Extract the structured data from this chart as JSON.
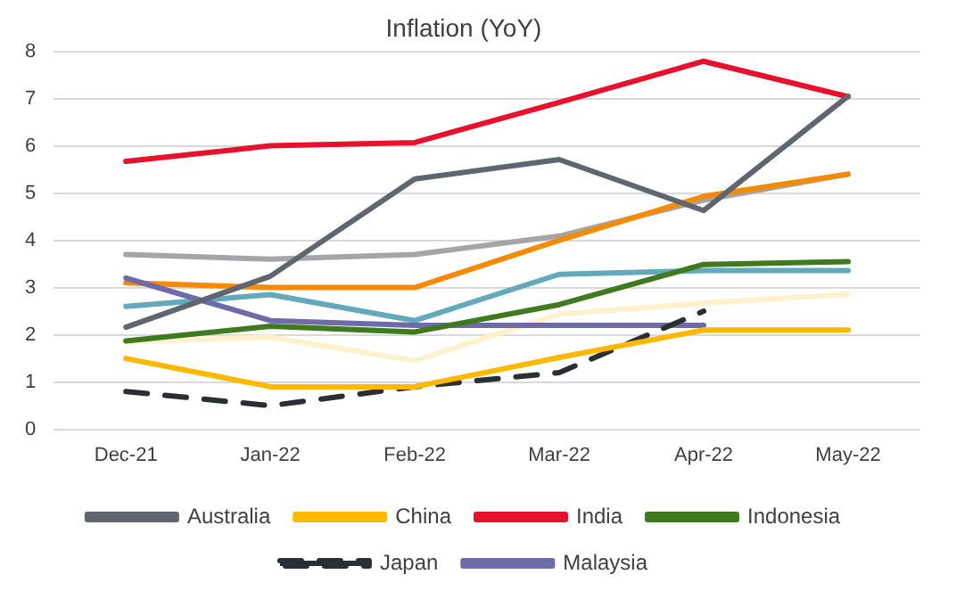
{
  "chart_data": {
    "type": "line",
    "title": "Inflation (YoY)",
    "categories": [
      "Dec-21",
      "Jan-22",
      "Feb-22",
      "Mar-22",
      "Apr-22",
      "May-22"
    ],
    "ylim": [
      0,
      8
    ],
    "yticks": [
      0,
      1,
      2,
      3,
      4,
      5,
      6,
      7,
      8
    ],
    "grid": "y",
    "legend": "bottom",
    "marker": "none",
    "series": [
      {
        "name": "Australia",
        "color": "#5f6670",
        "values": [
          2.16,
          3.24,
          5.3,
          5.71,
          4.63,
          7.05
        ]
      },
      {
        "name": "China",
        "color": "#ffb800",
        "values": [
          1.5,
          0.9,
          0.9,
          1.52,
          2.1,
          2.1
        ]
      },
      {
        "name": "India",
        "color": "#e8112d",
        "values": [
          5.67,
          6.0,
          6.07,
          6.92,
          7.79,
          7.04
        ]
      },
      {
        "name": "Indonesia",
        "color": "#3f7a1f",
        "values": [
          1.87,
          2.18,
          2.06,
          2.64,
          3.49,
          3.55
        ]
      },
      {
        "name": "Japan",
        "color": "#2b2f33",
        "line_style": "dashed",
        "values": [
          0.8,
          0.5,
          0.9,
          1.2,
          2.5,
          null
        ]
      },
      {
        "name": "Malaysia",
        "color": "#6f6aa8",
        "values": [
          3.2,
          2.3,
          2.2,
          2.2,
          2.2,
          null
        ]
      },
      {
        "color": "#f58a07",
        "values": [
          3.1,
          3.0,
          3.0,
          4.0,
          4.93,
          5.4
        ]
      },
      {
        "color": "#a5a5a8",
        "values": [
          3.7,
          3.6,
          3.7,
          4.09,
          4.85,
          5.4
        ]
      },
      {
        "color": "#63a9bb",
        "values": [
          2.6,
          2.85,
          2.3,
          3.28,
          3.36,
          3.36
        ]
      },
      {
        "color": "#fff1cc",
        "values": [
          1.85,
          1.95,
          1.45,
          2.44,
          2.67,
          2.86
        ]
      }
    ]
  }
}
